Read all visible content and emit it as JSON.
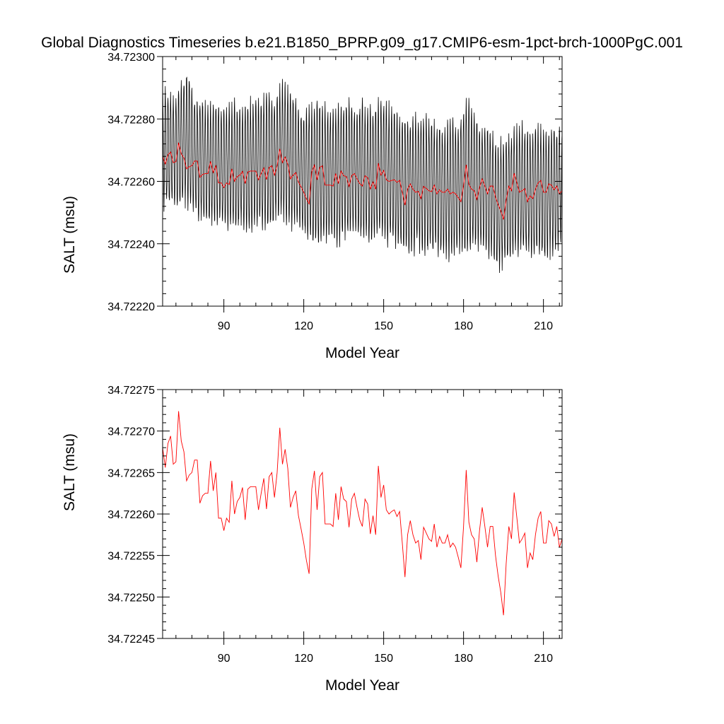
{
  "figure": {
    "title": "Global Diagnostics Timeseries b.e21.B1850_BPRP.g09_g17.CMIP6-esm-1pct-brch-1000PgC.001"
  },
  "chart_data": [
    {
      "type": "line",
      "title": "Global Diagnostics Timeseries b.e21.B1850_BPRP.g09_g17.CMIP6-esm-1pct-brch-1000PgC.001",
      "xlabel": "Model Year",
      "ylabel": "SALT (msu)",
      "xlim": [
        67,
        217
      ],
      "ylim": [
        34.7222,
        34.723
      ],
      "xticks": [
        90,
        120,
        150,
        180,
        210
      ],
      "yticks": [
        34.7222,
        34.7224,
        34.7226,
        34.7228,
        34.723
      ],
      "ytick_labels": [
        "34.72220",
        "34.72240",
        "34.72260",
        "34.72280",
        "34.72300"
      ],
      "grid": false,
      "legend": "none",
      "series": [
        {
          "color": "#000000",
          "note_style": "monthly",
          "annual_envelope": {
            "x": [
              67,
              70,
              73,
              76,
              79,
              82,
              85,
              88,
              91,
              94,
              97,
              100,
              103,
              106,
              109,
              112,
              115,
              118,
              121,
              124,
              127,
              130,
              133,
              136,
              139,
              142,
              145,
              148,
              151,
              154,
              157,
              160,
              163,
              166,
              169,
              172,
              175,
              178,
              181,
              184,
              187,
              190,
              193,
              196,
              199,
              202,
              205,
              208,
              211,
              214,
              217
            ],
            "max": [
              34.72292,
              34.72288,
              34.7229,
              34.72296,
              34.72288,
              34.72287,
              34.72285,
              34.72286,
              34.72284,
              34.72286,
              34.72285,
              34.72287,
              34.72286,
              34.72289,
              34.72288,
              34.72293,
              34.72291,
              34.72284,
              34.72283,
              34.72287,
              34.72286,
              34.72284,
              34.72286,
              34.72287,
              34.72285,
              34.72286,
              34.72284,
              34.72287,
              34.72286,
              34.72284,
              34.72282,
              34.72281,
              34.72283,
              34.72282,
              34.7228,
              34.72279,
              34.7228,
              34.72279,
              34.72289,
              34.72282,
              34.72279,
              34.72278,
              34.72273,
              34.72276,
              34.72278,
              34.72279,
              34.72277,
              34.72278,
              34.72277,
              34.72279,
              34.72276
            ],
            "min": [
              34.7225,
              34.72252,
              34.72251,
              34.72252,
              34.72249,
              34.72246,
              34.72245,
              34.72246,
              34.72244,
              34.72243,
              34.72245,
              34.72244,
              34.72245,
              34.72244,
              34.72246,
              34.72247,
              34.72245,
              34.72244,
              34.72241,
              34.72237,
              34.7224,
              34.72241,
              34.72239,
              34.72241,
              34.72242,
              34.7224,
              34.72239,
              34.72241,
              34.72239,
              34.7224,
              34.72236,
              34.72235,
              34.72238,
              34.72236,
              34.72237,
              34.72236,
              34.72234,
              34.72237,
              34.72235,
              34.72237,
              34.72236,
              34.72236,
              34.7223,
              34.72233,
              34.72235,
              34.72235,
              34.72236,
              34.72235,
              34.72234,
              34.72237,
              34.7224
            ]
          }
        },
        {
          "color": "#ff0000",
          "note_style": "annual",
          "x": [
            67,
            68,
            69,
            70,
            71,
            72,
            73,
            74,
            75,
            76,
            77,
            78,
            79,
            80,
            81,
            82,
            83,
            84,
            85,
            86,
            87,
            88,
            89,
            90,
            91,
            92,
            93,
            94,
            95,
            96,
            97,
            98,
            99,
            100,
            101,
            102,
            103,
            104,
            105,
            106,
            107,
            108,
            109,
            110,
            111,
            112,
            113,
            114,
            115,
            116,
            117,
            118,
            119,
            120,
            121,
            122,
            123,
            124,
            125,
            126,
            127,
            128,
            129,
            130,
            131,
            132,
            133,
            134,
            135,
            136,
            137,
            138,
            139,
            140,
            141,
            142,
            143,
            144,
            145,
            146,
            147,
            148,
            149,
            150,
            151,
            152,
            153,
            154,
            155,
            156,
            157,
            158,
            159,
            160,
            161,
            162,
            163,
            164,
            165,
            166,
            167,
            168,
            169,
            170,
            171,
            172,
            173,
            174,
            175,
            176,
            177,
            178,
            179,
            180,
            181,
            182,
            183,
            184,
            185,
            186,
            187,
            188,
            189,
            190,
            191,
            192,
            193,
            194,
            195,
            196,
            197,
            198,
            199,
            200,
            201,
            202,
            203,
            204,
            205,
            206,
            207,
            208,
            209,
            210,
            211,
            212,
            213,
            214,
            215,
            216,
            217
          ],
          "y": [
            34.72268,
            34.722656,
            34.722685,
            34.722694,
            34.72266,
            34.722663,
            34.722724,
            34.722688,
            34.722675,
            34.72264,
            34.722647,
            34.72265,
            34.722665,
            34.722665,
            34.722613,
            34.722622,
            34.722625,
            34.722625,
            34.722664,
            34.722628,
            34.72265,
            34.722595,
            34.722595,
            34.72258,
            34.722595,
            34.72259,
            34.72264,
            34.7226,
            34.722615,
            34.72262,
            34.722632,
            34.722593,
            34.72263,
            34.722633,
            34.722633,
            34.722633,
            34.722605,
            34.722625,
            34.722643,
            34.722606,
            34.722645,
            34.72265,
            34.72262,
            34.72265,
            34.722704,
            34.72266,
            34.722678,
            34.722655,
            34.722608,
            34.72262,
            34.722628,
            34.722598,
            34.722582,
            34.722565,
            34.722544,
            34.722528,
            34.72263,
            34.722652,
            34.722605,
            34.722645,
            34.72265,
            34.722588,
            34.722588,
            34.722588,
            34.722585,
            34.722625,
            34.722593,
            34.722633,
            34.722618,
            34.722615,
            34.722584,
            34.722618,
            34.722625,
            34.722608,
            34.722593,
            34.722585,
            34.722618,
            34.722612,
            34.722576,
            34.722598,
            34.722575,
            34.722658,
            34.72262,
            34.722635,
            34.722605,
            34.7226,
            34.722603,
            34.722605,
            34.722597,
            34.722603,
            34.722565,
            34.722524,
            34.722575,
            34.722592,
            34.722575,
            34.722565,
            34.722568,
            34.722545,
            34.722584,
            34.722577,
            34.72257,
            34.722567,
            34.722588,
            34.72256,
            34.722573,
            34.722565,
            34.722565,
            34.722575,
            34.72256,
            34.722565,
            34.72256,
            34.722548,
            34.722535,
            34.722585,
            34.722653,
            34.72259,
            34.722575,
            34.72257,
            34.722542,
            34.72258,
            34.722608,
            34.722585,
            34.72256,
            34.722585,
            34.722585,
            34.72255,
            34.722525,
            34.722505,
            34.722478,
            34.72254,
            34.722585,
            34.72257,
            34.722626,
            34.722596,
            34.722565,
            34.72257,
            34.722577,
            34.722535,
            34.722553,
            34.722545,
            34.722575,
            34.722595,
            34.722603,
            34.722565,
            34.722565,
            34.722592,
            34.722588,
            34.722573,
            34.722585,
            34.72256,
            34.72257
          ]
        }
      ]
    },
    {
      "type": "line",
      "title": "",
      "xlabel": "Model Year",
      "ylabel": "SALT (msu)",
      "xlim": [
        67,
        217
      ],
      "ylim": [
        34.72245,
        34.72275
      ],
      "xticks": [
        90,
        120,
        150,
        180,
        210
      ],
      "yticks": [
        34.72245,
        34.7225,
        34.72255,
        34.7226,
        34.72265,
        34.7227,
        34.72275
      ],
      "ytick_labels": [
        "34.72245",
        "34.72250",
        "34.72255",
        "34.72260",
        "34.72265",
        "34.72270",
        "34.72275"
      ],
      "grid": false,
      "legend": "none",
      "series": [
        {
          "color": "#ff0000",
          "note_style": "annual",
          "x": [
            67,
            68,
            69,
            70,
            71,
            72,
            73,
            74,
            75,
            76,
            77,
            78,
            79,
            80,
            81,
            82,
            83,
            84,
            85,
            86,
            87,
            88,
            89,
            90,
            91,
            92,
            93,
            94,
            95,
            96,
            97,
            98,
            99,
            100,
            101,
            102,
            103,
            104,
            105,
            106,
            107,
            108,
            109,
            110,
            111,
            112,
            113,
            114,
            115,
            116,
            117,
            118,
            119,
            120,
            121,
            122,
            123,
            124,
            125,
            126,
            127,
            128,
            129,
            130,
            131,
            132,
            133,
            134,
            135,
            136,
            137,
            138,
            139,
            140,
            141,
            142,
            143,
            144,
            145,
            146,
            147,
            148,
            149,
            150,
            151,
            152,
            153,
            154,
            155,
            156,
            157,
            158,
            159,
            160,
            161,
            162,
            163,
            164,
            165,
            166,
            167,
            168,
            169,
            170,
            171,
            172,
            173,
            174,
            175,
            176,
            177,
            178,
            179,
            180,
            181,
            182,
            183,
            184,
            185,
            186,
            187,
            188,
            189,
            190,
            191,
            192,
            193,
            194,
            195,
            196,
            197,
            198,
            199,
            200,
            201,
            202,
            203,
            204,
            205,
            206,
            207,
            208,
            209,
            210,
            211,
            212,
            213,
            214,
            215,
            216,
            217
          ],
          "y": [
            34.72268,
            34.722656,
            34.722685,
            34.722694,
            34.72266,
            34.722663,
            34.722724,
            34.722688,
            34.722675,
            34.72264,
            34.722647,
            34.72265,
            34.722665,
            34.722665,
            34.722613,
            34.722622,
            34.722625,
            34.722625,
            34.722664,
            34.722628,
            34.72265,
            34.722595,
            34.722595,
            34.72258,
            34.722595,
            34.72259,
            34.72264,
            34.7226,
            34.722615,
            34.72262,
            34.722632,
            34.722593,
            34.72263,
            34.722633,
            34.722633,
            34.722633,
            34.722605,
            34.722625,
            34.722643,
            34.722606,
            34.722645,
            34.72265,
            34.72262,
            34.72265,
            34.722704,
            34.72266,
            34.722678,
            34.722655,
            34.722608,
            34.72262,
            34.722628,
            34.722598,
            34.722582,
            34.722565,
            34.722544,
            34.722528,
            34.72263,
            34.722652,
            34.722605,
            34.722645,
            34.72265,
            34.722588,
            34.722588,
            34.722588,
            34.722585,
            34.722625,
            34.722593,
            34.722633,
            34.722618,
            34.722615,
            34.722584,
            34.722618,
            34.722625,
            34.722608,
            34.722593,
            34.722585,
            34.722618,
            34.722612,
            34.722576,
            34.722598,
            34.722575,
            34.722658,
            34.72262,
            34.722635,
            34.722605,
            34.7226,
            34.722603,
            34.722605,
            34.722597,
            34.722603,
            34.722565,
            34.722524,
            34.722575,
            34.722592,
            34.722575,
            34.722565,
            34.722568,
            34.722545,
            34.722584,
            34.722577,
            34.72257,
            34.722567,
            34.722588,
            34.72256,
            34.722573,
            34.722565,
            34.722565,
            34.722575,
            34.72256,
            34.722565,
            34.72256,
            34.722548,
            34.722535,
            34.722585,
            34.722653,
            34.72259,
            34.722575,
            34.72257,
            34.722542,
            34.72258,
            34.722608,
            34.722585,
            34.72256,
            34.722585,
            34.722585,
            34.72255,
            34.722525,
            34.722505,
            34.722478,
            34.72254,
            34.722585,
            34.72257,
            34.722626,
            34.722596,
            34.722565,
            34.72257,
            34.722577,
            34.722535,
            34.722553,
            34.722545,
            34.722575,
            34.722595,
            34.722603,
            34.722565,
            34.722565,
            34.722592,
            34.722588,
            34.722573,
            34.722585,
            34.72256,
            34.72257
          ]
        }
      ]
    }
  ]
}
